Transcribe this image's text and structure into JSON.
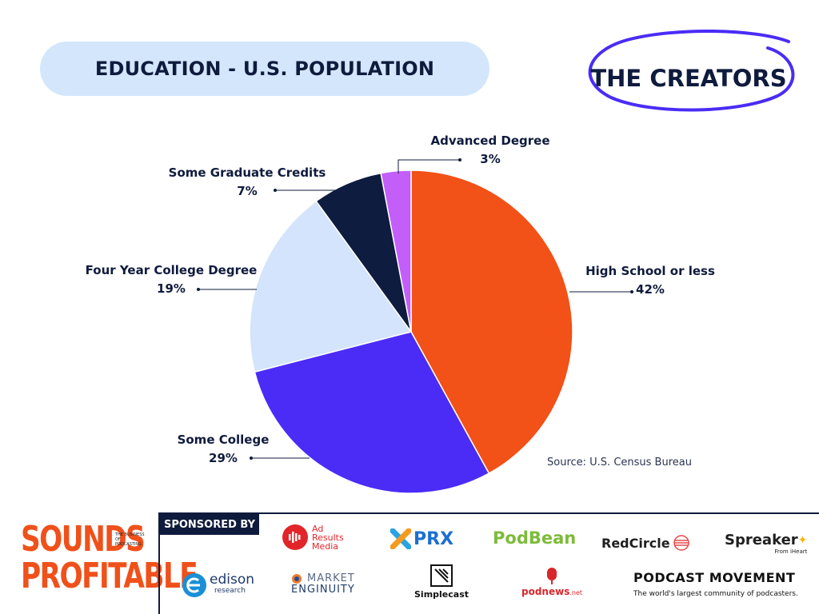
{
  "header": {
    "title": "EDUCATION - U.S. POPULATION",
    "badge": "THE CREATORS"
  },
  "chart_data": {
    "type": "pie",
    "title": "EDUCATION - U.S. POPULATION",
    "slices": [
      {
        "label": "High School or less",
        "value": 42,
        "display": "42%",
        "color": "#f25117"
      },
      {
        "label": "Some College",
        "value": 29,
        "display": "29%",
        "color": "#4a2cf6"
      },
      {
        "label": "Four Year College Degree",
        "value": 19,
        "display": "19%",
        "color": "#d3e4fc"
      },
      {
        "label": "Some Graduate Credits",
        "value": 7,
        "display": "7%",
        "color": "#0e1c3f"
      },
      {
        "label": "Advanced Degree",
        "value": 3,
        "display": "3%",
        "color": "#c45ef8"
      }
    ],
    "start_angle": "12 o'clock",
    "direction": "clockwise"
  },
  "source": "Source: U.S. Census Bureau",
  "footer": {
    "logo_lines": [
      "SOUNDS",
      "PROFITABLE"
    ],
    "logo_tagline": "THE BUSINESS OF PODCASTING",
    "sponsor_heading": "SPONSORED BY",
    "sponsors": {
      "adresults": [
        "Ad",
        "Results",
        "Media"
      ],
      "prx": "PRX",
      "podbean": "PodBean",
      "redcircle": "RedCircle",
      "spreaker": "Spreaker",
      "spreaker_sub": "From iHeart",
      "edison": "edison",
      "edison_sub": "research",
      "market": "MARKET",
      "enginuity": "ENGINUITY",
      "simplecast": "Simplecast",
      "podnews": "podnews",
      "podnews_suffix": ".net",
      "podcast_movement": "PODCAST MOVEMENT",
      "pm_tagline": "The world's largest community of podcasters."
    }
  }
}
